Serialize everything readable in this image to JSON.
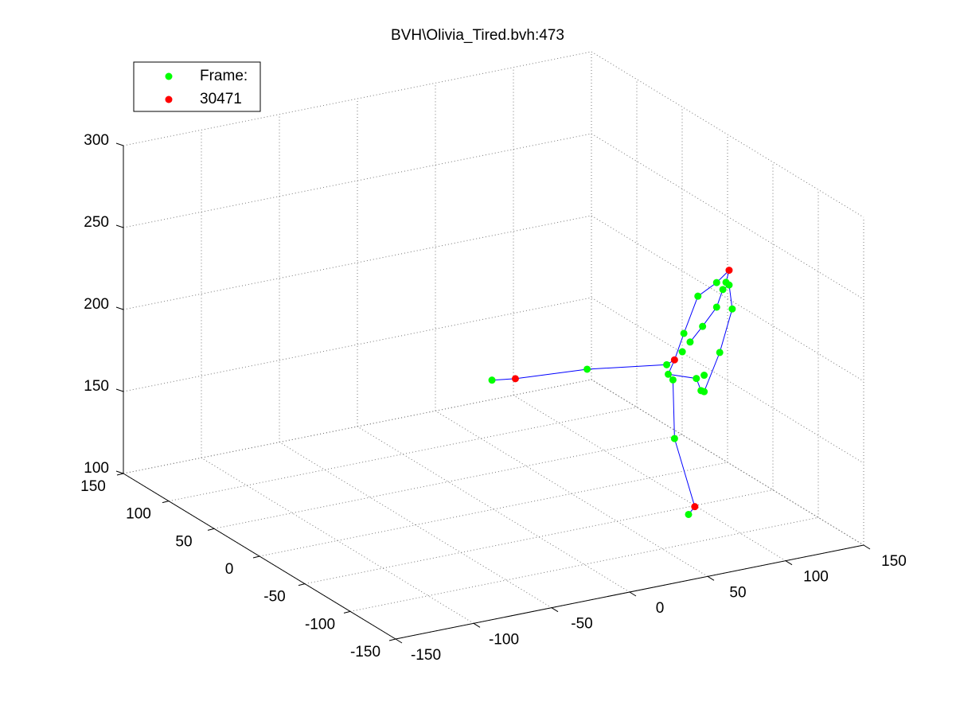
{
  "chart_data": {
    "type": "scatter3d",
    "title": "BVH\\Olivia_Tired.bvh:473",
    "xlim": [
      -150,
      150
    ],
    "ylim": [
      -150,
      150
    ],
    "zlim": [
      100,
      300
    ],
    "xticks": [
      -150,
      -100,
      -50,
      0,
      50,
      100,
      150
    ],
    "yticks": [
      -150,
      -100,
      -50,
      0,
      50,
      100,
      150
    ],
    "zticks": [
      100,
      150,
      200,
      250,
      300
    ],
    "grid": true,
    "legend": "upper left",
    "series": [
      {
        "name": "Frame:",
        "color": "#00ff00",
        "mode": "markers",
        "x": [
          -1,
          60,
          111,
          115,
          112,
          121,
          126,
          122,
          134,
          131,
          143,
          147,
          151,
          149,
          143,
          153,
          145,
          135,
          130,
          133,
          135,
          116,
          125
        ],
        "y": [
          0,
          0,
          0,
          0,
          0,
          0,
          0,
          0,
          0,
          0,
          0,
          0,
          0,
          0,
          0,
          0,
          0,
          0,
          0,
          0,
          0,
          0,
          0
        ],
        "z": [
          179,
          174,
          167,
          157,
          161,
          173,
          178,
          184,
          186,
          205,
          211,
          206,
          208,
          210,
          196,
          193,
          168,
          156,
          155,
          147,
          146,
          121,
          73
        ]
      },
      {
        "name": "30471",
        "color": "#ff0000",
        "mode": "markers",
        "x": [
          14,
          116,
          151,
          129
        ],
        "y": [
          0,
          0,
          0,
          0
        ],
        "z": [
          177,
          169,
          217,
          77
        ]
      },
      {
        "color": "#0000ff",
        "mode": "line",
        "x": [
          -1,
          14,
          60,
          111,
          116,
          122,
          131,
          143,
          151,
          149,
          151,
          147,
          null,
          126,
          134,
          143,
          147,
          null,
          151,
          153,
          145,
          135,
          null,
          115,
          116,
          129,
          125,
          null,
          116,
          112,
          115,
          null,
          112,
          130,
          133
        ],
        "y": [
          0,
          0,
          0,
          0,
          0,
          0,
          0,
          0,
          0,
          0,
          0,
          0,
          null,
          0,
          0,
          0,
          0,
          null,
          0,
          0,
          0,
          0,
          null,
          0,
          0,
          0,
          0,
          null,
          0,
          0,
          0,
          null,
          0,
          0,
          0
        ],
        "z": [
          179,
          177,
          174,
          167,
          169,
          184,
          205,
          211,
          217,
          210,
          208,
          206,
          null,
          178,
          186,
          196,
          206,
          null,
          208,
          193,
          168,
          146,
          null,
          157,
          121,
          77,
          73,
          null,
          169,
          161,
          157,
          null,
          161,
          155,
          147
        ]
      }
    ]
  }
}
